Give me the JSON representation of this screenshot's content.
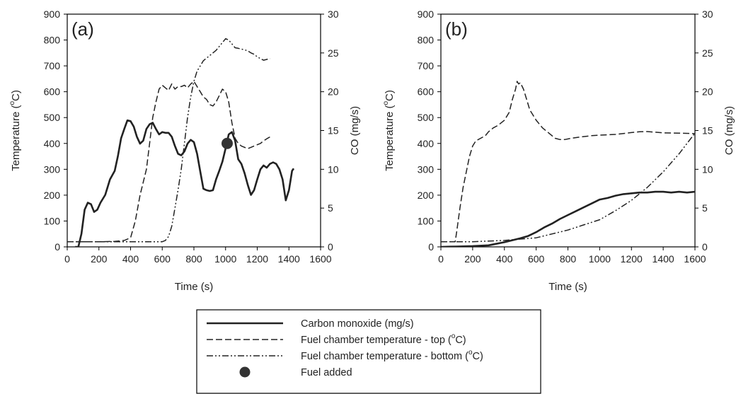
{
  "chart_data": [
    {
      "type": "line",
      "panel_label": "(a)",
      "xlabel": "Time (s)",
      "ylabel": "Temperature (",
      "ylabel_sup": "o",
      "ylabel_end": "C)",
      "y2label": "CO (mg/s)",
      "xlim": [
        0,
        1600
      ],
      "ylim": [
        0,
        900
      ],
      "y2lim": [
        0,
        30
      ],
      "xticks": [
        "0",
        "200",
        "400",
        "600",
        "800",
        "1000",
        "1200",
        "1400",
        "1600"
      ],
      "yticks": [
        "0",
        "100",
        "200",
        "300",
        "400",
        "500",
        "600",
        "700",
        "800",
        "900"
      ],
      "y2ticks": [
        "0",
        "5",
        "10",
        "15",
        "20",
        "25",
        "30"
      ],
      "series": [
        {
          "name": "Carbon monoxide (mg/s)",
          "axis": "right",
          "style": "solid",
          "x": [
            50,
            70,
            90,
            110,
            130,
            150,
            170,
            190,
            210,
            240,
            270,
            300,
            320,
            340,
            360,
            380,
            400,
            420,
            440,
            460,
            480,
            500,
            520,
            540,
            560,
            580,
            600,
            620,
            640,
            660,
            680,
            700,
            720,
            740,
            760,
            780,
            800,
            820,
            840,
            860,
            880,
            900,
            920,
            940,
            960,
            980,
            1000,
            1020,
            1040,
            1060,
            1080,
            1100,
            1120,
            1140,
            1160,
            1180,
            1200,
            1220,
            1240,
            1260,
            1280,
            1300,
            1320,
            1340,
            1360,
            1380,
            1400,
            1420,
            1430
          ],
          "y": [
            0.0,
            0.0,
            1.7,
            4.8,
            5.7,
            5.5,
            4.5,
            4.8,
            5.7,
            6.7,
            8.7,
            9.8,
            11.7,
            14.0,
            15.2,
            16.3,
            16.2,
            15.5,
            14.2,
            13.3,
            13.7,
            15.2,
            15.8,
            16.0,
            15.2,
            14.5,
            14.8,
            14.7,
            14.7,
            14.2,
            13.0,
            12.0,
            11.8,
            12.3,
            13.3,
            13.8,
            13.5,
            12.0,
            9.7,
            7.5,
            7.3,
            7.2,
            7.3,
            8.7,
            9.8,
            11.0,
            12.7,
            14.5,
            14.8,
            13.7,
            11.3,
            10.7,
            9.5,
            8.0,
            6.7,
            7.3,
            8.7,
            10.0,
            10.5,
            10.2,
            10.7,
            10.9,
            10.7,
            10.0,
            8.7,
            6.0,
            7.3,
            9.8,
            10.1
          ]
        },
        {
          "name": "Fuel chamber temperature - top (",
          "name_sup": "o",
          "name_end": "C)",
          "axis": "left",
          "style": "dashed",
          "x": [
            0,
            100,
            200,
            300,
            360,
            400,
            430,
            460,
            480,
            500,
            520,
            540,
            560,
            580,
            600,
            620,
            640,
            660,
            680,
            700,
            720,
            740,
            760,
            780,
            800,
            820,
            840,
            860,
            880,
            900,
            920,
            940,
            960,
            980,
            1000,
            1020,
            1040,
            1060,
            1080,
            1100,
            1120,
            1140,
            1160,
            1180,
            1200,
            1220,
            1240,
            1260,
            1280
          ],
          "y": [
            20,
            20,
            20,
            21,
            25,
            35,
            100,
            200,
            250,
            300,
            400,
            500,
            560,
            610,
            625,
            615,
            605,
            630,
            610,
            620,
            620,
            625,
            615,
            630,
            640,
            620,
            600,
            580,
            570,
            550,
            545,
            560,
            585,
            610,
            600,
            560,
            480,
            420,
            400,
            390,
            385,
            380,
            385,
            390,
            395,
            400,
            410,
            418,
            425
          ]
        },
        {
          "name": "Fuel chamber temperature - bottom (",
          "name_sup": "o",
          "name_end": "C)",
          "axis": "left",
          "style": "dashdotdot",
          "x": [
            0,
            200,
            400,
            550,
            600,
            620,
            640,
            660,
            680,
            700,
            720,
            740,
            760,
            780,
            800,
            820,
            840,
            860,
            880,
            900,
            920,
            940,
            960,
            980,
            1000,
            1020,
            1040,
            1060,
            1080,
            1100,
            1120,
            1140,
            1160,
            1180,
            1200,
            1220,
            1240,
            1260,
            1280
          ],
          "y": [
            20,
            20,
            20,
            20,
            20,
            25,
            40,
            80,
            150,
            220,
            300,
            400,
            500,
            580,
            640,
            680,
            700,
            720,
            730,
            740,
            750,
            760,
            775,
            790,
            805,
            800,
            785,
            770,
            768,
            765,
            762,
            758,
            750,
            745,
            735,
            728,
            722,
            725,
            728
          ]
        },
        {
          "name": "Fuel added",
          "axis": "left",
          "style": "marker",
          "x": [
            1010
          ],
          "y": [
            400
          ]
        }
      ]
    },
    {
      "type": "line",
      "panel_label": "(b)",
      "xlabel": "Time (s)",
      "ylabel": "Temperature (",
      "ylabel_sup": "o",
      "ylabel_end": "C)",
      "y2label": "CO (mg/s)",
      "xlim": [
        0,
        1600
      ],
      "ylim": [
        0,
        900
      ],
      "y2lim": [
        0,
        30
      ],
      "xticks": [
        "0",
        "200",
        "400",
        "600",
        "800",
        "1000",
        "1200",
        "1400",
        "1600"
      ],
      "yticks": [
        "0",
        "100",
        "200",
        "300",
        "400",
        "500",
        "600",
        "700",
        "800",
        "900"
      ],
      "y2ticks": [
        "0",
        "5",
        "10",
        "15",
        "20",
        "25",
        "30"
      ],
      "series": [
        {
          "name": "Carbon monoxide (mg/s)",
          "axis": "right",
          "style": "solid",
          "x": [
            0,
            100,
            200,
            300,
            400,
            500,
            550,
            600,
            650,
            700,
            750,
            800,
            850,
            900,
            950,
            1000,
            1050,
            1100,
            1150,
            1200,
            1250,
            1300,
            1350,
            1400,
            1450,
            1500,
            1550,
            1600,
            1630
          ],
          "y": [
            0.0,
            0.05,
            0.1,
            0.2,
            0.6,
            1.1,
            1.4,
            1.9,
            2.5,
            3.0,
            3.6,
            4.1,
            4.6,
            5.1,
            5.6,
            6.1,
            6.3,
            6.6,
            6.8,
            6.9,
            7.0,
            7.0,
            7.1,
            7.1,
            7.0,
            7.1,
            7.0,
            7.1,
            7.0
          ]
        },
        {
          "name": "Fuel chamber temperature - top (",
          "name_sup": "o",
          "name_end": "C)",
          "axis": "left",
          "style": "dashed",
          "x": [
            0,
            90,
            100,
            120,
            140,
            160,
            180,
            200,
            220,
            250,
            280,
            300,
            330,
            360,
            400,
            430,
            450,
            470,
            480,
            490,
            500,
            520,
            540,
            560,
            600,
            640,
            680,
            720,
            750,
            780,
            820,
            880,
            950,
            1000,
            1100,
            1200,
            1250,
            1300,
            1400,
            1500,
            1600,
            1630
          ],
          "y": [
            20,
            20,
            60,
            150,
            230,
            290,
            350,
            390,
            410,
            420,
            430,
            445,
            460,
            470,
            490,
            520,
            570,
            610,
            640,
            630,
            635,
            610,
            570,
            530,
            490,
            460,
            440,
            420,
            415,
            415,
            420,
            425,
            430,
            432,
            435,
            442,
            445,
            446,
            441,
            440,
            438,
            437
          ]
        },
        {
          "name": "Fuel chamber temperature - bottom (",
          "name_sup": "o",
          "name_end": "C)",
          "axis": "left",
          "style": "dashdotdot",
          "x": [
            0,
            200,
            400,
            500,
            600,
            700,
            800,
            900,
            1000,
            1100,
            1200,
            1300,
            1400,
            1500,
            1550,
            1600,
            1630
          ],
          "y": [
            20,
            20,
            25,
            30,
            35,
            50,
            65,
            85,
            105,
            140,
            180,
            230,
            290,
            360,
            400,
            440,
            450
          ]
        }
      ]
    }
  ],
  "legend": {
    "entries": [
      {
        "text": "Carbon monoxide (mg/s)",
        "sup": "",
        "end": "",
        "style": "solid"
      },
      {
        "text": "Fuel chamber temperature - top (",
        "sup": "o",
        "end": "C)",
        "style": "dashed"
      },
      {
        "text": "Fuel chamber temperature - bottom (",
        "sup": "o",
        "end": "C)",
        "style": "dashdotdot"
      },
      {
        "text": "Fuel added",
        "sup": "",
        "end": "",
        "style": "marker"
      }
    ]
  },
  "colors": {
    "line": "#222222",
    "marker": "#333333",
    "axis": "#000000"
  }
}
